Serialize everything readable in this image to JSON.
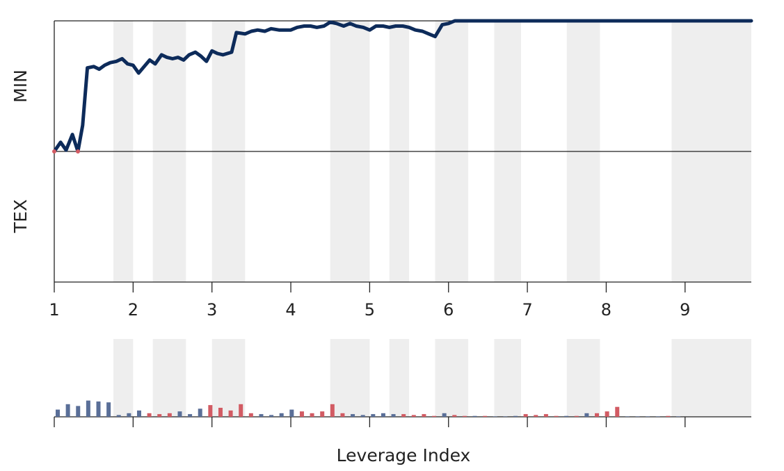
{
  "chart_data": {
    "type": "line",
    "xlabel": "Leverage Index",
    "ylabel_top": "MIN",
    "ylabel_bottom": "TEX",
    "xlim": [
      1,
      9.84
    ],
    "ylim": [
      -1,
      1
    ],
    "x_ticks": [
      1,
      2,
      3,
      4,
      5,
      6,
      7,
      8,
      9
    ],
    "x_tick_labels": [
      "1",
      "2",
      "3",
      "4",
      "5",
      "6",
      "7",
      "8",
      "9"
    ],
    "shaded_bands": [
      [
        1.75,
        2.0
      ],
      [
        2.25,
        2.67
      ],
      [
        3.0,
        3.42
      ],
      [
        4.5,
        5.0
      ],
      [
        5.25,
        5.5
      ],
      [
        5.83,
        6.25
      ],
      [
        6.58,
        6.92
      ],
      [
        7.5,
        7.92
      ],
      [
        8.83,
        9.84
      ]
    ],
    "line_color": "#0d2b5a",
    "positive_color": "#5a6f98",
    "negative_color": "#d25b63",
    "band_color": "#eeeeee",
    "series": [
      {
        "values": [
          [
            1.0,
            0.0
          ],
          [
            1.08,
            0.07
          ],
          [
            1.15,
            0.01
          ],
          [
            1.23,
            0.13
          ],
          [
            1.3,
            0.0
          ],
          [
            1.36,
            0.2
          ],
          [
            1.42,
            0.64
          ],
          [
            1.5,
            0.65
          ],
          [
            1.57,
            0.63
          ],
          [
            1.64,
            0.66
          ],
          [
            1.71,
            0.68
          ],
          [
            1.79,
            0.69
          ],
          [
            1.86,
            0.71
          ],
          [
            1.93,
            0.67
          ],
          [
            2.0,
            0.66
          ],
          [
            2.07,
            0.6
          ],
          [
            2.14,
            0.65
          ],
          [
            2.21,
            0.7
          ],
          [
            2.28,
            0.67
          ],
          [
            2.36,
            0.74
          ],
          [
            2.43,
            0.72
          ],
          [
            2.5,
            0.71
          ],
          [
            2.57,
            0.72
          ],
          [
            2.64,
            0.7
          ],
          [
            2.71,
            0.74
          ],
          [
            2.79,
            0.76
          ],
          [
            2.86,
            0.73
          ],
          [
            2.93,
            0.69
          ],
          [
            3.0,
            0.77
          ],
          [
            3.07,
            0.75
          ],
          [
            3.14,
            0.74
          ],
          [
            3.25,
            0.76
          ],
          [
            3.31,
            0.91
          ],
          [
            3.42,
            0.9
          ],
          [
            3.5,
            0.92
          ],
          [
            3.58,
            0.93
          ],
          [
            3.67,
            0.92
          ],
          [
            3.75,
            0.94
          ],
          [
            3.85,
            0.93
          ],
          [
            3.94,
            0.93
          ],
          [
            4.0,
            0.93
          ],
          [
            4.08,
            0.95
          ],
          [
            4.17,
            0.96
          ],
          [
            4.25,
            0.96
          ],
          [
            4.33,
            0.95
          ],
          [
            4.42,
            0.96
          ],
          [
            4.5,
            0.99
          ],
          [
            4.58,
            0.98
          ],
          [
            4.67,
            0.96
          ],
          [
            4.75,
            0.98
          ],
          [
            4.83,
            0.96
          ],
          [
            4.92,
            0.95
          ],
          [
            5.0,
            0.93
          ],
          [
            5.08,
            0.96
          ],
          [
            5.17,
            0.96
          ],
          [
            5.25,
            0.95
          ],
          [
            5.33,
            0.96
          ],
          [
            5.42,
            0.96
          ],
          [
            5.5,
            0.95
          ],
          [
            5.58,
            0.93
          ],
          [
            5.67,
            0.92
          ],
          [
            5.75,
            0.9
          ],
          [
            5.83,
            0.88
          ],
          [
            5.92,
            0.97
          ],
          [
            6.0,
            0.98
          ],
          [
            6.08,
            1.0
          ],
          [
            6.5,
            1.0
          ],
          [
            7.0,
            1.0
          ],
          [
            7.5,
            1.0
          ],
          [
            8.0,
            1.0
          ],
          [
            8.5,
            1.0
          ],
          [
            9.0,
            1.0
          ],
          [
            9.84,
            1.0
          ]
        ]
      }
    ],
    "histogram": [
      0.8,
      1.4,
      1.2,
      1.8,
      1.7,
      1.6,
      0.2,
      0.4,
      0.7,
      -0.4,
      -0.3,
      -0.4,
      0.6,
      0.3,
      0.9,
      -1.3,
      -1.0,
      -0.7,
      -1.4,
      -0.4,
      0.3,
      0.2,
      0.4,
      0.8,
      -0.6,
      -0.4,
      -0.6,
      -1.4,
      -0.4,
      0.3,
      0.2,
      0.3,
      0.4,
      0.3,
      -0.3,
      -0.2,
      -0.3,
      -0.1,
      0.4,
      -0.2,
      -0.1,
      0.1,
      -0.1,
      0.05,
      0.05,
      0.1,
      -0.3,
      -0.2,
      -0.3,
      -0.1,
      0.1,
      -0.1,
      0.4,
      -0.4,
      -0.6,
      -1.1,
      0.05,
      0.05,
      0.05,
      0.05,
      -0.1,
      0.05
    ]
  }
}
